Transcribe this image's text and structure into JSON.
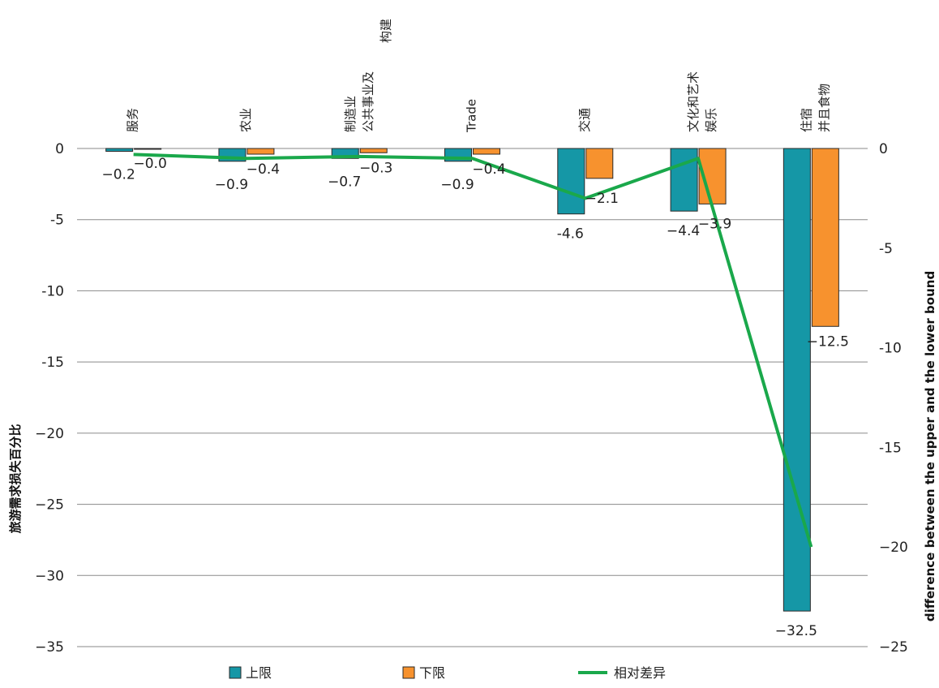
{
  "chart_data": {
    "type": "bar",
    "categories": [
      [
        "服务"
      ],
      [
        "农业"
      ],
      [
        "制造业",
        "公共事业及",
        "构建"
      ],
      [
        "Trade"
      ],
      [
        "交通"
      ],
      [
        "文化和艺术",
        "娱乐"
      ],
      [
        "住宿",
        "并且食物"
      ]
    ],
    "series": [
      {
        "name": "上限",
        "type": "bar",
        "axis": "left",
        "color": "#1597a6",
        "values": [
          -0.2,
          -0.9,
          -0.7,
          -0.9,
          -4.6,
          -4.4,
          -32.5
        ],
        "labels": [
          "−0.2",
          "−0.9",
          "−0.7",
          "−0.9",
          "-4.6",
          "−4.4",
          "−32.5"
        ]
      },
      {
        "name": "下限",
        "type": "bar",
        "axis": "left",
        "color": "#f7922e",
        "values": [
          -0.0,
          -0.4,
          -0.3,
          -0.4,
          -2.1,
          -3.9,
          -12.5
        ],
        "labels": [
          "−0.0",
          "−0.4",
          "−0.3",
          "−0.4",
          "−2.1",
          "−3.9",
          "−12.5"
        ]
      },
      {
        "name": "相对差异",
        "type": "line",
        "axis": "right",
        "color": "#1aa84b",
        "values": [
          -0.3,
          -0.5,
          -0.4,
          -0.5,
          -2.5,
          -0.5,
          -20.0
        ]
      }
    ],
    "ylabel": "旅游需求损失百分比",
    "y2label": "difference between the upper and the lower bound",
    "ylim": [
      -35,
      0
    ],
    "y2lim": [
      -25,
      0
    ],
    "yticks": [
      0,
      -5,
      -10,
      -15,
      -20,
      -25,
      -30,
      -35
    ],
    "yticklabels": [
      "0",
      "-5",
      "-10",
      "-15",
      "−20",
      "−25",
      "−30",
      "−35"
    ],
    "y2ticks": [
      0,
      -5,
      -10,
      -15,
      -20,
      -25
    ],
    "y2ticklabels": [
      "0",
      "-5",
      "-10",
      "-15",
      "−20",
      "−25"
    ],
    "grid": true,
    "legend_position": "bottom"
  }
}
